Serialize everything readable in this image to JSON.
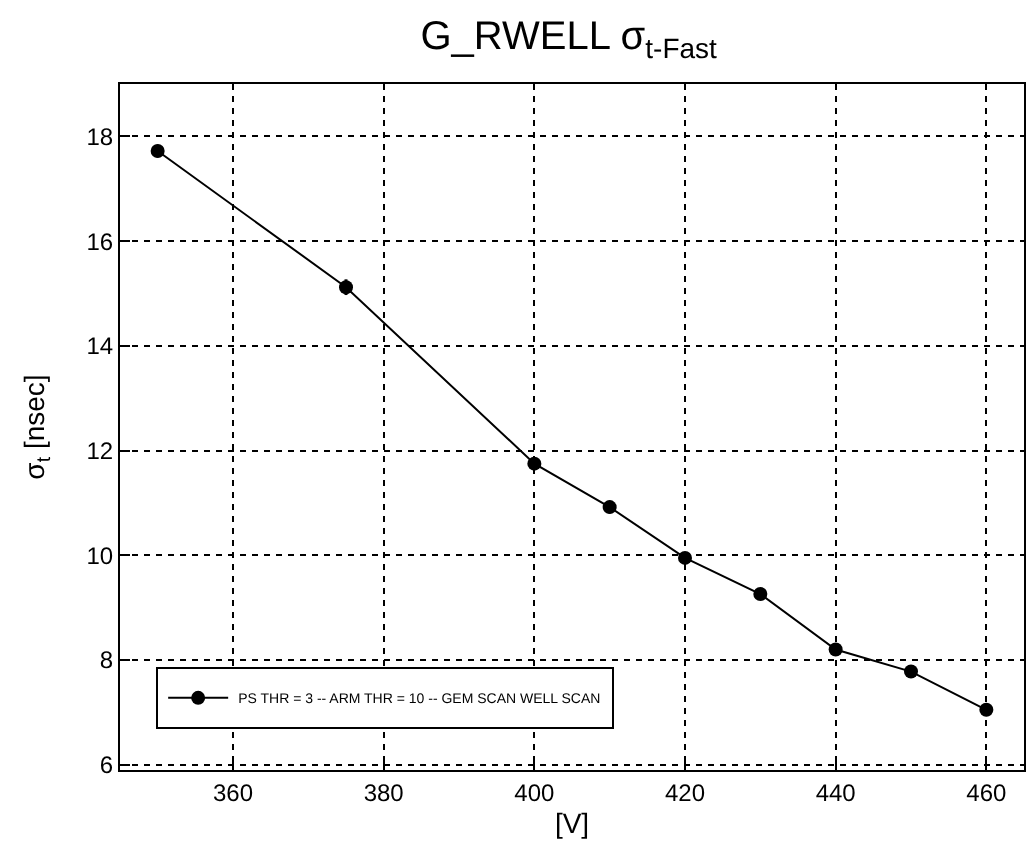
{
  "chart_data": {
    "type": "line",
    "title": "G_RWELL σ$_{t-Fast}$",
    "xlabel": "[V]",
    "ylabel": "σ$_{t}$ [nsec]",
    "x": [
      350,
      375,
      400,
      410,
      420,
      430,
      440,
      450,
      460
    ],
    "series": [
      {
        "name": "PS THR = 3 -- ARM THR = 10 -- GEM SCAN WELL SCAN",
        "color": "#000000",
        "values": [
          17.72,
          15.12,
          11.75,
          10.92,
          9.95,
          9.26,
          8.2,
          7.78,
          7.05
        ],
        "errors": [
          0.12,
          0.15,
          0.12,
          0.12,
          0.1,
          0.08,
          0.08,
          0.06,
          0.12
        ]
      }
    ],
    "xlim": [
      345,
      465
    ],
    "xticks": [
      360,
      380,
      400,
      420,
      440,
      460
    ],
    "ylim": [
      5.9,
      19
    ],
    "yticks": [
      6,
      8,
      10,
      12,
      14,
      16,
      18
    ],
    "grid": true,
    "legend": "bottom left",
    "marker": "circle",
    "line_style": "solid"
  }
}
